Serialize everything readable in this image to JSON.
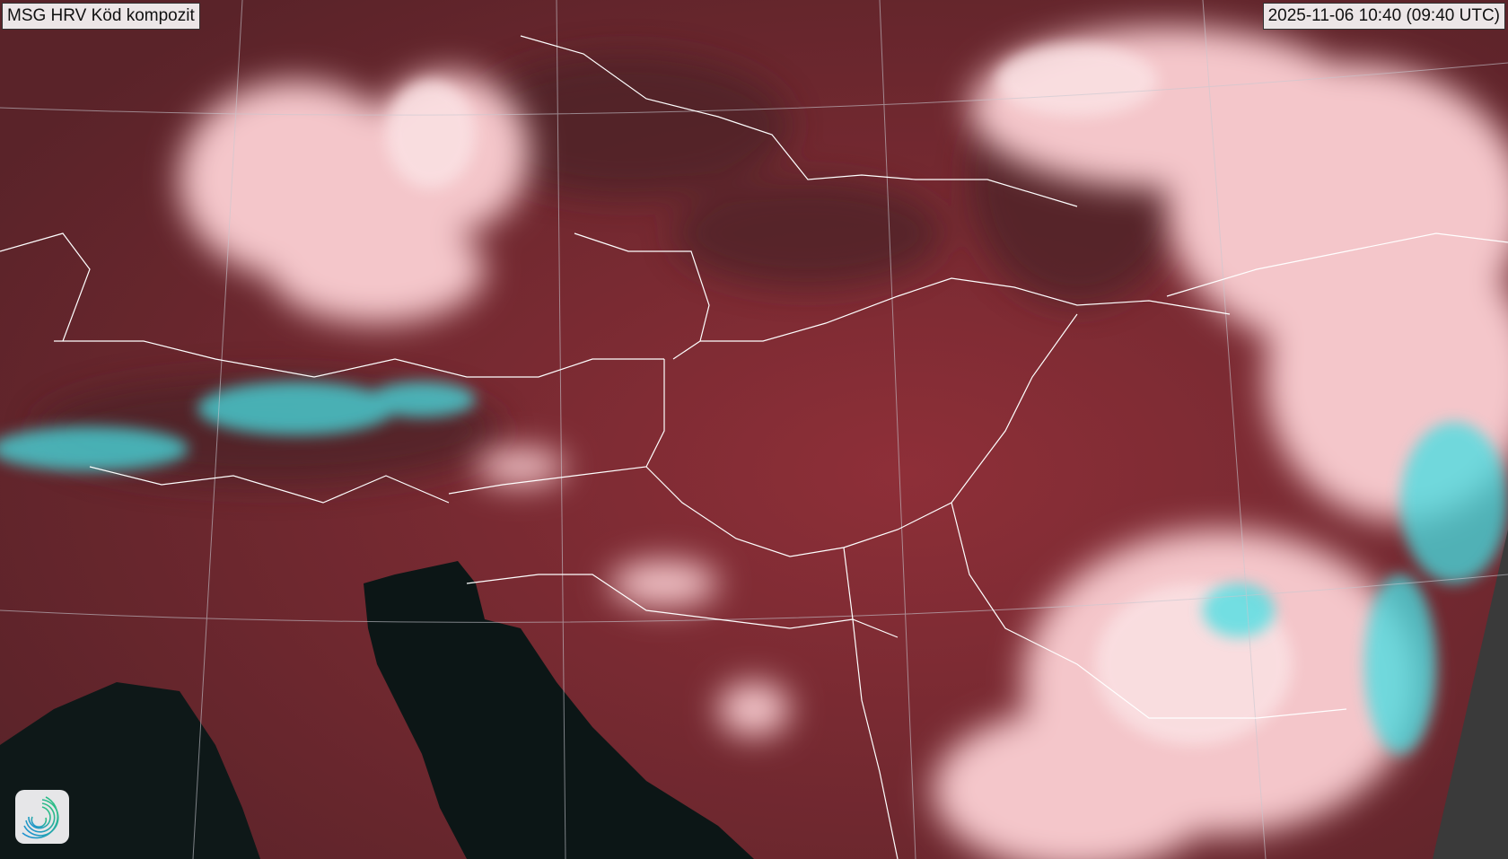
{
  "map": {
    "title": "MSG HRV Köd kompozit",
    "timestamp": "2025-11-06 10:40 (09:40 UTC)",
    "logo_icon": "swirl-logo-icon",
    "colors": {
      "land": "#7a2b33",
      "cloud": "#f3c4c8",
      "snow": "#47e3e6",
      "sea": "#0c1414",
      "no_data": "#3a3a3a",
      "borders": "#ffffff"
    }
  }
}
